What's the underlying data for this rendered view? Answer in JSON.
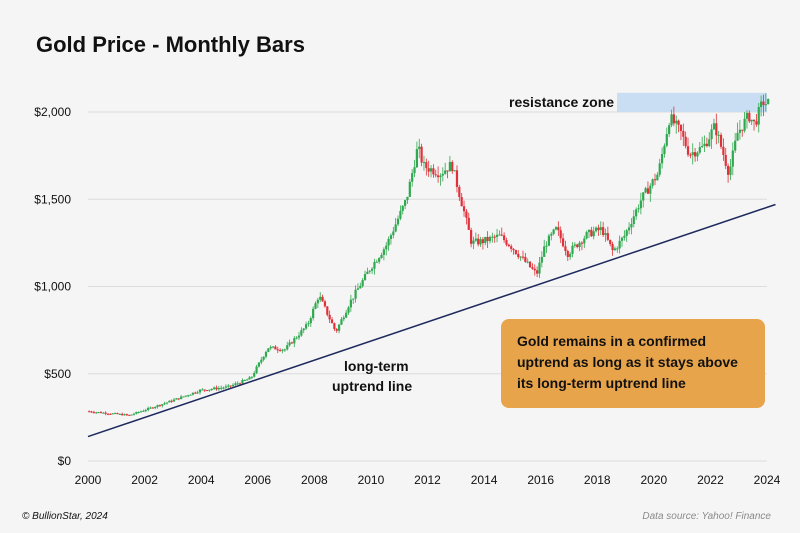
{
  "chart_data": {
    "type": "candlestick",
    "title": "Gold Price - Monthly Bars",
    "xlabel": "",
    "ylabel": "",
    "ylim": [
      0,
      2130
    ],
    "xlim": [
      2000,
      2024
    ],
    "grid": "horizontal",
    "y_ticks": [
      0,
      500,
      1000,
      1500,
      2000
    ],
    "y_tick_labels": [
      "$0",
      "$500",
      "$1,000",
      "$1,500",
      "$2,000"
    ],
    "x_ticks": [
      2000,
      2002,
      2004,
      2006,
      2008,
      2010,
      2012,
      2014,
      2016,
      2018,
      2020,
      2022,
      2024
    ],
    "x_tick_labels": [
      "2000",
      "2002",
      "2004",
      "2006",
      "2008",
      "2010",
      "2012",
      "2014",
      "2016",
      "2018",
      "2020",
      "2022",
      "2024"
    ],
    "colors": {
      "up": "#2fa84f",
      "down": "#e0303a",
      "trend_line": "#1e2a5e",
      "resistance_zone": "#c9def2",
      "callout": "#e8a44a"
    },
    "price_anchors": [
      [
        2000.0,
        285
      ],
      [
        2001.0,
        270
      ],
      [
        2001.5,
        262
      ],
      [
        2002.0,
        290
      ],
      [
        2003.0,
        345
      ],
      [
        2004.0,
        405
      ],
      [
        2005.0,
        425
      ],
      [
        2005.8,
        475
      ],
      [
        2006.4,
        650
      ],
      [
        2007.0,
        640
      ],
      [
        2007.8,
        780
      ],
      [
        2008.2,
        950
      ],
      [
        2008.8,
        740
      ],
      [
        2009.3,
        910
      ],
      [
        2010.0,
        1100
      ],
      [
        2010.6,
        1240
      ],
      [
        2011.3,
        1500
      ],
      [
        2011.7,
        1800
      ],
      [
        2011.9,
        1690
      ],
      [
        2012.5,
        1650
      ],
      [
        2012.9,
        1700
      ],
      [
        2013.3,
        1450
      ],
      [
        2013.6,
        1250
      ],
      [
        2014.0,
        1260
      ],
      [
        2014.6,
        1290
      ],
      [
        2015.0,
        1230
      ],
      [
        2015.9,
        1070
      ],
      [
        2016.2,
        1240
      ],
      [
        2016.6,
        1330
      ],
      [
        2017.0,
        1190
      ],
      [
        2017.7,
        1300
      ],
      [
        2018.2,
        1330
      ],
      [
        2018.6,
        1200
      ],
      [
        2019.0,
        1290
      ],
      [
        2019.6,
        1500
      ],
      [
        2020.2,
        1650
      ],
      [
        2020.6,
        1970
      ],
      [
        2021.0,
        1880
      ],
      [
        2021.3,
        1760
      ],
      [
        2021.8,
        1800
      ],
      [
        2022.2,
        1920
      ],
      [
        2022.7,
        1650
      ],
      [
        2023.0,
        1880
      ],
      [
        2023.4,
        1980
      ],
      [
        2023.6,
        1930
      ],
      [
        2023.9,
        2060
      ],
      [
        2024.0,
        2050
      ]
    ],
    "trend_line": {
      "start": [
        2000.0,
        140
      ],
      "end": [
        2024.3,
        1470
      ]
    },
    "resistance_zone": {
      "x_range": [
        2018.7,
        2024.0
      ],
      "y_range": [
        2000,
        2110
      ]
    },
    "annotations": {
      "resistance_label": "resistance zone",
      "trend_label_line1": "long-term",
      "trend_label_line2": "uptrend line",
      "callout_lines": [
        "Gold remains in a confirmed",
        "uptrend as long as it stays above",
        "its long-term uptrend line"
      ]
    }
  },
  "footer": {
    "copyright": "© BullionStar, 2024",
    "source": "Data source: Yahoo! Finance"
  }
}
